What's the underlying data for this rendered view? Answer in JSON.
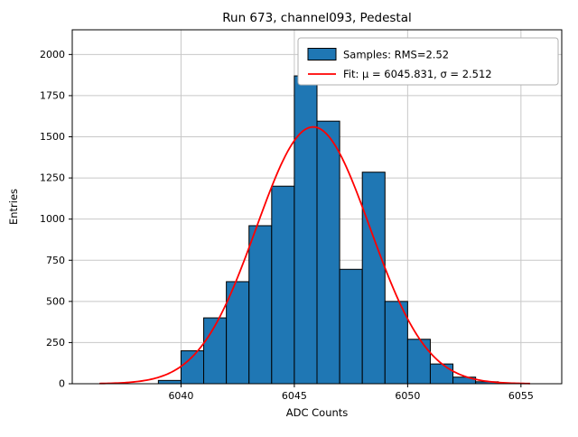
{
  "figure": {
    "title": "Run 673, channel093, Pedestal",
    "xlabel": "ADC Counts",
    "ylabel": "Entries"
  },
  "legend": {
    "samples_label": "Samples: RMS=2.52",
    "fit_label": "Fit: μ = 6045.831, σ = 2.512"
  },
  "colors": {
    "bar_fill": "#1f77b4",
    "bar_edge": "#000000",
    "fit_line": "#ff0000",
    "grid": "#c8c8c8",
    "spine": "#000000"
  },
  "chart_data": {
    "type": "bar",
    "subtype": "histogram",
    "title": "Run 673, channel093, Pedestal",
    "xlabel": "ADC Counts",
    "ylabel": "Entries",
    "bin_width": 1,
    "bin_left_edges": [
      6039,
      6040,
      6041,
      6042,
      6043,
      6044,
      6045,
      6046,
      6047,
      6048,
      6049,
      6050,
      6051,
      6052,
      6053
    ],
    "counts": [
      20,
      200,
      400,
      620,
      960,
      1200,
      1870,
      1595,
      695,
      1285,
      500,
      270,
      120,
      40,
      12
    ],
    "fit": {
      "type": "gaussian",
      "mu": 6045.831,
      "sigma": 2.512,
      "amplitude": 1560,
      "x_range": [
        6036.4,
        6055.4
      ]
    },
    "rms": 2.52,
    "xlim": [
      6035.2,
      6056.8
    ],
    "ylim": [
      0,
      2150
    ],
    "xticks": [
      6040,
      6045,
      6050,
      6055
    ],
    "yticks": [
      0,
      250,
      500,
      750,
      1000,
      1250,
      1500,
      1750,
      2000
    ],
    "grid": true,
    "legend_position": "upper right",
    "legend": [
      "Samples: RMS=2.52",
      "Fit: μ = 6045.831, σ = 2.512"
    ]
  }
}
